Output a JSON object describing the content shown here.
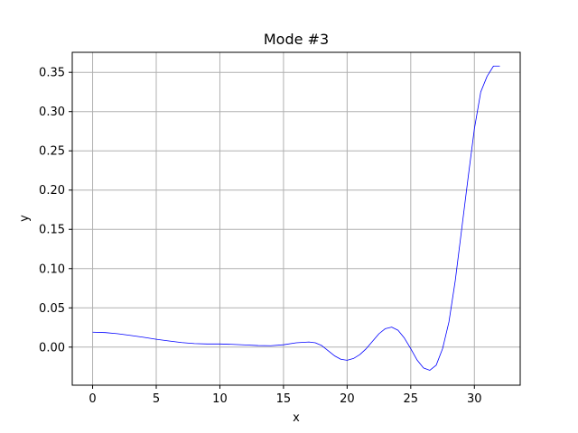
{
  "chart_data": {
    "type": "line",
    "title": "Mode #3",
    "xlabel": "x",
    "ylabel": "y",
    "xlim": [
      -1.6,
      33.6
    ],
    "ylim": [
      -0.0485,
      0.3755
    ],
    "xticks": [
      0,
      5,
      10,
      15,
      20,
      25,
      30
    ],
    "yticks": [
      0.0,
      0.05,
      0.1,
      0.15,
      0.2,
      0.25,
      0.3,
      0.35
    ],
    "grid": true,
    "colors": {
      "line": "#0000ff",
      "grid": "#b0b0b0"
    },
    "series": [
      {
        "color": "#0000ff",
        "x": [
          0,
          1,
          2,
          3,
          4,
          5,
          6,
          7,
          8,
          9,
          10,
          11,
          12,
          13,
          14,
          15,
          16,
          17,
          17.5,
          18,
          18.5,
          19,
          19.5,
          20,
          20.5,
          21,
          21.5,
          22,
          22.5,
          23,
          23.5,
          24,
          24.5,
          25,
          25.5,
          26,
          26.5,
          27,
          27.5,
          28,
          28.5,
          29,
          29.5,
          30,
          30.5,
          31,
          31.5,
          32
        ],
        "y": [
          0.019,
          0.0185,
          0.017,
          0.0148,
          0.0125,
          0.01,
          0.0078,
          0.0058,
          0.0045,
          0.004,
          0.004,
          0.0035,
          0.0028,
          0.002,
          0.0018,
          0.003,
          0.0055,
          0.0065,
          0.0055,
          0.002,
          -0.0045,
          -0.011,
          -0.0155,
          -0.0168,
          -0.0145,
          -0.0095,
          -0.002,
          0.0075,
          0.017,
          0.0235,
          0.0255,
          0.0215,
          0.0115,
          -0.002,
          -0.0165,
          -0.0265,
          -0.0295,
          -0.023,
          -0.002,
          0.032,
          0.085,
          0.15,
          0.215,
          0.278,
          0.325,
          0.345,
          0.358,
          0.358
        ]
      }
    ]
  }
}
